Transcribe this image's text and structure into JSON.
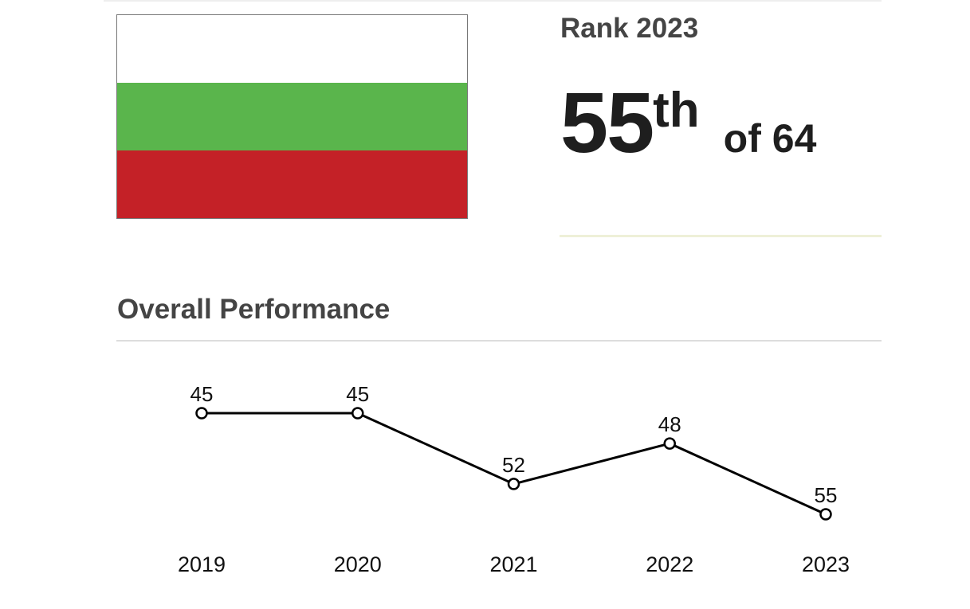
{
  "rank": {
    "title": "Rank 2023",
    "number": "55",
    "suffix": "th",
    "of_text": "of 64"
  },
  "flag": {
    "stripes": [
      "#ffffff",
      "#5ab54c",
      "#c42127"
    ]
  },
  "section": {
    "title": "Overall Performance"
  },
  "chart_data": {
    "type": "line",
    "title": "Overall Performance",
    "x": [
      "2019",
      "2020",
      "2021",
      "2022",
      "2023"
    ],
    "series": [
      {
        "values": [
          45,
          45,
          52,
          48,
          55
        ]
      }
    ],
    "y_inverted": true,
    "ylim": [
      45,
      55
    ],
    "grid": false,
    "line_color": "#000000",
    "marker_fill": "#ffffff"
  }
}
